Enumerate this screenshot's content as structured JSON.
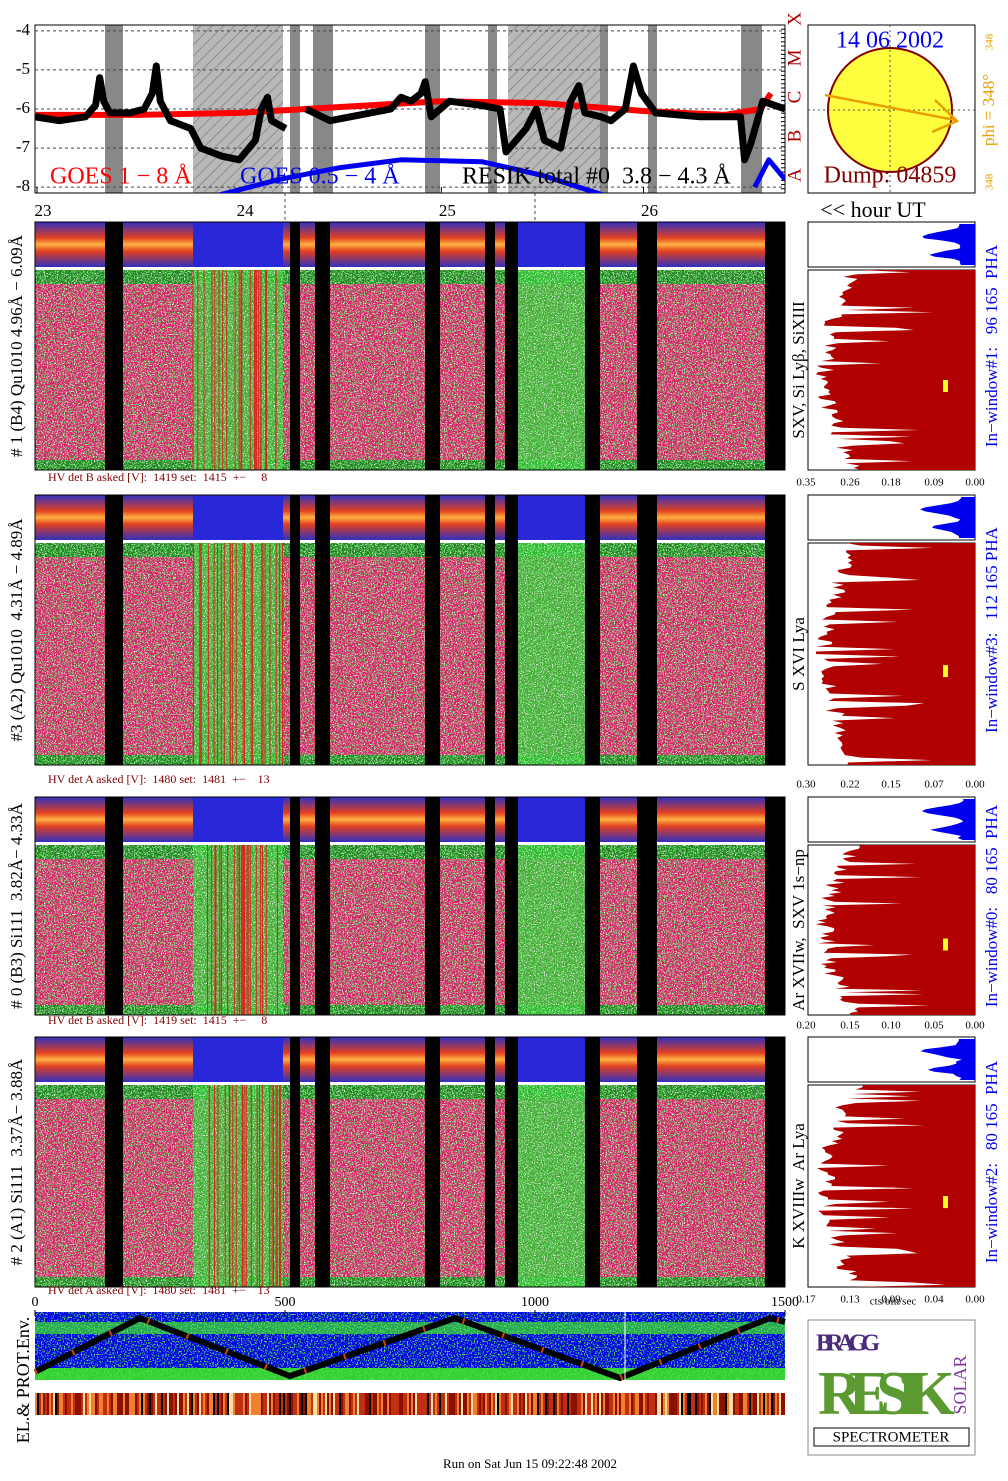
{
  "chart_data": {
    "type": "line",
    "xlim": [
      22.99,
      26.7
    ],
    "ylim": [
      -8.15,
      -3.85
    ],
    "xticks": [
      23,
      24,
      25,
      26
    ],
    "yticks": [
      -4,
      -5,
      -6,
      -7,
      -8
    ],
    "xlabel": "<< hour UT",
    "class_letters": [
      "X",
      "M",
      "C",
      "B",
      "A"
    ],
    "series": [
      {
        "name": "GOES 1 − 8 Å",
        "color": "#ff0000",
        "x": [
          22.99,
          23.5,
          24.0,
          24.5,
          25.0,
          25.5,
          26.0,
          26.4,
          26.58,
          26.63
        ],
        "values": [
          -6.15,
          -6.15,
          -6.1,
          -5.95,
          -5.8,
          -5.85,
          -6.05,
          -6.15,
          -6.0,
          -5.6
        ]
      },
      {
        "name": "GOES 0.5 − 4 Å",
        "color": "#0000ee",
        "x": [
          23.9,
          24.2,
          24.5,
          24.8,
          25.2,
          25.5,
          25.8,
          26.5,
          26.55,
          26.62,
          26.7
        ],
        "values": [
          -8.2,
          -7.8,
          -7.5,
          -7.3,
          -7.35,
          -7.7,
          -8.2,
          null,
          -8.0,
          -7.3,
          -7.8
        ]
      },
      {
        "name": "RESIK total #0  3.8 − 4.3 Å",
        "color": "#000000",
        "x": [
          22.99,
          23.11,
          23.24,
          23.29,
          23.31,
          23.33,
          23.36,
          23.46,
          23.53,
          23.57,
          23.59,
          23.61,
          23.66,
          23.76,
          23.81,
          23.91,
          24.0,
          24.08,
          24.11,
          24.14,
          24.16,
          24.23,
          24.28,
          24.33,
          24.45,
          24.55,
          24.75,
          24.8,
          24.85,
          24.9,
          24.92,
          24.95,
          25.04,
          25.19,
          25.29,
          25.32,
          25.37,
          25.42,
          25.47,
          25.51,
          25.59,
          25.64,
          25.68,
          25.71,
          25.79,
          25.84,
          25.91,
          25.95,
          25.99,
          26.06,
          26.28,
          26.48,
          26.5,
          26.53,
          26.59,
          26.7
        ],
        "values": [
          -6.2,
          -6.3,
          -6.2,
          -5.9,
          -5.2,
          -5.8,
          -6.1,
          -6.1,
          -6.0,
          -5.6,
          -4.9,
          -5.8,
          -6.3,
          -6.5,
          -7.0,
          -7.2,
          -7.3,
          -6.8,
          -6.0,
          -5.7,
          -6.3,
          -6.5,
          null,
          -6.0,
          -6.3,
          -6.2,
          -6.0,
          -5.7,
          -5.8,
          -5.6,
          -5.3,
          -6.2,
          -5.8,
          -5.9,
          -6.0,
          -7.1,
          -6.8,
          -6.5,
          -6.0,
          -6.8,
          -7.0,
          -5.8,
          -5.4,
          -6.1,
          -6.2,
          -6.3,
          -6.0,
          -4.9,
          -5.6,
          -6.1,
          -6.2,
          -6.2,
          -7.3,
          -6.9,
          -5.8,
          -6.0
        ]
      }
    ]
  },
  "sun": {
    "date": "14 06 2002",
    "dump": "Dump: 04859",
    "phi": "phi = 348°",
    "phi_small": "348"
  },
  "panels": [
    {
      "label": "# 1 (B4) Qu1010 4.96Å − 6.09Å",
      "hv": "HV det B asked [V]:  1419 set:  1415  +−     8",
      "lines": "SXV, Si Lyβ, SiXIII",
      "window": "In−window#1:   96 165  PHA",
      "ticks": [
        "0.35",
        "0.26",
        "0.18",
        "0.09",
        "0.00"
      ]
    },
    {
      "label": "#3 (A2) Qu1010  4.31Å − 4.89Å",
      "hv": "HV det A asked [V]:  1480 set:  1481  +−    13",
      "lines": "S XVI Lya",
      "window": "In−window#3:   112 165 PHA",
      "ticks": [
        "0.30",
        "0.22",
        "0.15",
        "0.07",
        "0.00"
      ]
    },
    {
      "label": "# 0 (B3) Si111  3.82Å− 4.33Å",
      "hv": "HV det B asked [V]:  1419 set:  1415  +−     8",
      "lines": "Ar XVIIw,  SXV 1s−np",
      "window": "In−window#0:   80 165  PHA",
      "ticks": [
        "0.20",
        "0.15",
        "0.10",
        "0.05",
        "0.00"
      ]
    },
    {
      "label": "# 2 (A1) Si111  3.37Å− 3.88Å",
      "hv": "HV det A asked [V]:  1480 set:  1481  +−    13",
      "lines": "K XVIIIw  Ar Lya",
      "window": "In−window#2:   80 165  PHA",
      "ticks": [
        "0.17",
        "0.13",
        "0.09",
        "0.04",
        "0.00"
      ]
    }
  ],
  "units": "cts/bin/sec",
  "bottom": {
    "xticks": [
      0,
      500,
      1000,
      1500
    ],
    "label": "EL.& PROT.Env."
  },
  "logo": {
    "top": "BRAGG",
    "main": "RESIK",
    "side": "SOLAR",
    "name": "SPECTROMETER"
  },
  "footer": "Run on Sat Jun 15 09:22:48 2002"
}
